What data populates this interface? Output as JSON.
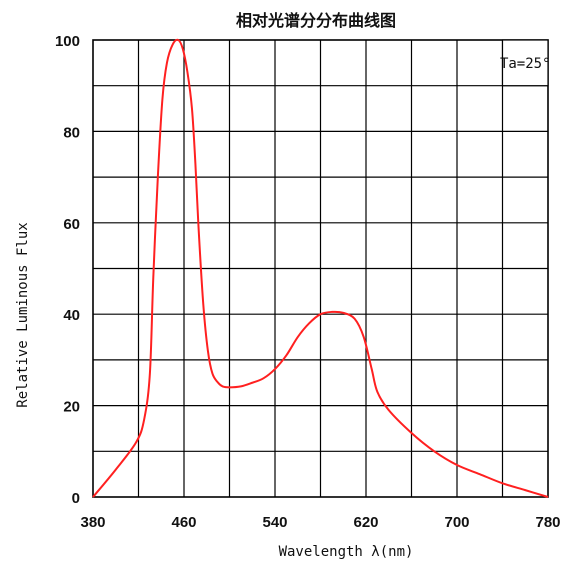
{
  "chart_data": {
    "type": "line",
    "title": "相对光谱分分布曲线图",
    "xlabel": "Wavelength λ(nm)",
    "ylabel": "Relative Luminous Flux",
    "annotation": "Ta=25°",
    "xlim": [
      380,
      780
    ],
    "ylim": [
      0,
      100
    ],
    "x_ticks": [
      "380",
      "460",
      "540",
      "620",
      "700",
      "780"
    ],
    "y_ticks": [
      "0",
      "20",
      "40",
      "60",
      "80",
      "100"
    ],
    "grid": true,
    "line_color": "#ff2020",
    "series": [
      {
        "x": [
          380,
          400,
          418,
          425,
          430,
          433,
          437,
          441,
          445,
          450,
          455,
          459,
          463,
          467,
          470,
          473,
          477,
          481,
          485,
          490,
          494,
          500,
          510,
          520,
          530,
          540,
          550,
          560,
          570,
          580,
          590,
          600,
          610,
          618,
          625,
          630,
          640,
          660,
          680,
          700,
          720,
          740,
          760,
          780
        ],
        "y": [
          0,
          6,
          12,
          17,
          27,
          48,
          70,
          87,
          95,
          99,
          100,
          98,
          93,
          85,
          73,
          58,
          42,
          32,
          27,
          25,
          24.2,
          24,
          24.2,
          25,
          26,
          28,
          31,
          35,
          38,
          40,
          40.5,
          40.3,
          39,
          35,
          28,
          23,
          19,
          14,
          10,
          7,
          5,
          3,
          1.5,
          0
        ]
      }
    ]
  }
}
